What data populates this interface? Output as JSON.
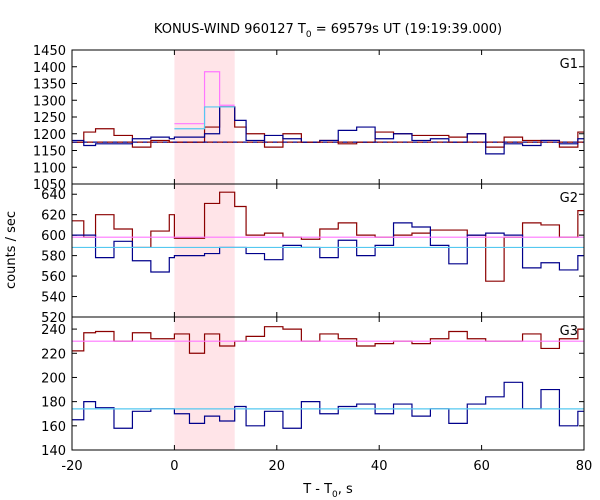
{
  "chart_data": {
    "type": "line",
    "title": "KONUS-WIND 960127 T",
    "title_sub": "0",
    "title_rest": " = 69579s UT (19:19:39.000)",
    "xlabel": "T - T",
    "xlabel_sub": "0",
    "xlabel_rest": ", s",
    "ylabel": "counts / sec",
    "xlim": [
      -20,
      80
    ],
    "x_ticks": [
      -20,
      0,
      20,
      40,
      60,
      80
    ],
    "shaded_interval": [
      0,
      11.776
    ],
    "bin_edges": [
      -20,
      -17.7,
      -15.4,
      -11.8,
      -8.2,
      -4.6,
      -1,
      0,
      2.944,
      5.888,
      8.832,
      11.776,
      14,
      17.6,
      21.2,
      24.8,
      28.4,
      32,
      35.6,
      39.2,
      42.8,
      46.4,
      50,
      53.6,
      57.2,
      60.8,
      64.4,
      68,
      71.6,
      75.2,
      78.8,
      80
    ],
    "colors": {
      "dark_red": "#8b0000",
      "dark_blue": "#00008b",
      "pink": "#ff77ff",
      "light_blue": "#55c8f0",
      "shade": "#ffe4e8"
    },
    "panels": [
      {
        "label": "G1",
        "ylim": [
          1050,
          1450
        ],
        "y_ticks": [
          1050,
          1100,
          1150,
          1200,
          1250,
          1300,
          1350,
          1400,
          1450
        ],
        "series": [
          {
            "values": [
              1175,
              1205,
              1215,
              1195,
              1160,
              1180,
              1175,
              1175,
              1175,
              1220,
              1280,
              1220,
              1200,
              1160,
              1200,
              1175,
              1180,
              1170,
              1175,
              1205,
              1200,
              1195,
              1195,
              1190,
              1200,
              1160,
              1190,
              1180,
              1180,
              1160,
              1205
            ]
          },
          {
            "values": [
              1180,
              1165,
              1170,
              1170,
              1185,
              1190,
              1185,
              1190,
              1190,
              1200,
              1280,
              1240,
              1180,
              1195,
              1185,
              1175,
              1180,
              1210,
              1220,
              1185,
              1200,
              1180,
              1185,
              1175,
              1200,
              1140,
              1170,
              1165,
              1180,
              1170,
              1185
            ]
          },
          {
            "values": [
              null,
              null,
              null,
              null,
              null,
              null,
              null,
              1230,
              1230,
              1385,
              1285,
              null,
              null,
              null,
              null,
              null,
              null,
              null,
              null,
              null,
              null,
              null,
              null,
              null,
              null,
              null,
              null,
              null,
              null,
              null,
              null
            ]
          },
          {
            "values": [
              null,
              null,
              null,
              null,
              null,
              null,
              null,
              1215,
              1215,
              1280,
              1280,
              null,
              null,
              null,
              null,
              null,
              null,
              null,
              null,
              null,
              null,
              null,
              null,
              null,
              null,
              null,
              null,
              null,
              null,
              null,
              null
            ]
          }
        ],
        "background_levels": [
          1175,
          1175
        ]
      },
      {
        "label": "G2",
        "ylim": [
          520,
          650
        ],
        "y_ticks": [
          520,
          540,
          560,
          580,
          600,
          620,
          640
        ],
        "series": [
          {
            "values": [
              614,
              598,
              620,
              606,
              588,
              604,
              620,
              597,
              597,
              631,
              642,
              628,
              600,
              602,
              598,
              596,
              606,
              612,
              600,
              598,
              600,
              602,
              605,
              605,
              600,
              555,
              598,
              612,
              610,
              598,
              624
            ]
          },
          {
            "values": [
              600,
              600,
              578,
              594,
              575,
              564,
              578,
              580,
              580,
              582,
              588,
              588,
              582,
              576,
              590,
              588,
              578,
              595,
              580,
              590,
              612,
              608,
              590,
              572,
              600,
              602,
              600,
              568,
              573,
              566,
              580
            ]
          },
          {
            "values": [
              598,
              598,
              598,
              598,
              598,
              598,
              598,
              598,
              598,
              598,
              598,
              598,
              598,
              598,
              598,
              598,
              598,
              598,
              598,
              598,
              598,
              598,
              598,
              598,
              598,
              598,
              598,
              598,
              598,
              598,
              598
            ]
          },
          {
            "values": [
              588,
              588,
              588,
              588,
              588,
              588,
              588,
              588,
              588,
              588,
              588,
              588,
              588,
              588,
              588,
              588,
              588,
              588,
              588,
              588,
              588,
              588,
              588,
              588,
              588,
              588,
              588,
              588,
              588,
              588,
              588
            ]
          }
        ]
      },
      {
        "label": "G3",
        "ylim": [
          140,
          250
        ],
        "y_ticks": [
          140,
          160,
          180,
          200,
          220,
          240
        ],
        "series": [
          {
            "values": [
              222,
              237,
              238,
              230,
              237,
              232,
              232,
              236,
              220,
              236,
              226,
              230,
              234,
              242,
              240,
              230,
              236,
              232,
              226,
              228,
              230,
              228,
              232,
              238,
              232,
              230,
              230,
              236,
              224,
              232,
              240
            ]
          },
          {
            "values": [
              165,
              180,
              175,
              158,
              172,
              174,
              174,
              170,
              162,
              168,
              164,
              176,
              160,
              172,
              158,
              180,
              170,
              176,
              178,
              170,
              178,
              168,
              174,
              162,
              178,
              184,
              196,
              174,
              190,
              160,
              172
            ]
          },
          {
            "values": [
              230,
              230,
              230,
              230,
              230,
              230,
              230,
              230,
              230,
              230,
              230,
              230,
              230,
              230,
              230,
              230,
              230,
              230,
              230,
              230,
              230,
              230,
              230,
              230,
              230,
              230,
              230,
              230,
              230,
              230,
              230
            ]
          },
          {
            "values": [
              174,
              174,
              174,
              174,
              174,
              174,
              174,
              174,
              174,
              174,
              174,
              174,
              174,
              174,
              174,
              174,
              174,
              174,
              174,
              174,
              174,
              174,
              174,
              174,
              174,
              174,
              174,
              174,
              174,
              174,
              174
            ]
          }
        ]
      }
    ]
  }
}
